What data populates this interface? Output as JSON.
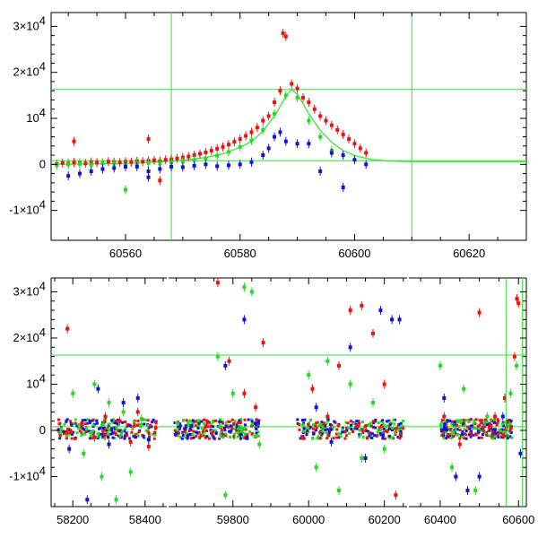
{
  "chart_data": [
    {
      "type": "scatter",
      "title": "",
      "xlabel": "",
      "ylabel": "",
      "xlim": [
        60547,
        60630
      ],
      "ylim": [
        -16500,
        33000
      ],
      "x_ticks": [
        60560,
        60580,
        60600,
        60620
      ],
      "x_tick_labels": [
        "60560",
        "60580",
        "60600",
        "60620"
      ],
      "y_ticks": [
        -10000,
        0,
        10000,
        20000,
        30000
      ],
      "y_tick_labels": [
        {
          "base": "-1×10",
          "exp": "4"
        },
        {
          "base": "0",
          "exp": ""
        },
        {
          "base": "10",
          "exp": "4"
        },
        {
          "base": "2×10",
          "exp": "4"
        },
        {
          "base": "3×10",
          "exp": "4"
        }
      ],
      "grid": false,
      "legend": "none",
      "reference_lines": {
        "horizontal": [
          16300,
          800
        ],
        "vertical": [
          60568,
          60610
        ],
        "color": "#2ee82e"
      },
      "model_curve": {
        "color": "#2ee82e",
        "x": [
          60547,
          60556,
          60562,
          60566,
          60570,
          60574,
          60577,
          60580,
          60582,
          60584,
          60586,
          60587,
          60588,
          60589,
          60590,
          60591,
          60592,
          60594,
          60596,
          60598,
          60600,
          60603,
          60606,
          60610,
          60630
        ],
        "y": [
          0,
          150,
          300,
          550,
          900,
          1500,
          2300,
          3700,
          5000,
          7200,
          10500,
          12600,
          14800,
          16300,
          15200,
          13200,
          11000,
          7400,
          4800,
          3000,
          1900,
          1050,
          700,
          600,
          600
        ]
      },
      "series": [
        {
          "color": "#ee1111",
          "x": [
            60548,
            60549,
            60550,
            60551,
            60552,
            60553,
            60554,
            60555,
            60556,
            60557,
            60558,
            60559,
            60560,
            60561,
            60562,
            60563,
            60564,
            60565,
            60566,
            60567,
            60568,
            60569,
            60570,
            60571,
            60572,
            60573,
            60574,
            60575,
            60576,
            60577,
            60578,
            60579,
            60580,
            60581,
            60582,
            60583,
            60584,
            60585,
            60586,
            60587,
            60587.5,
            60588,
            60589,
            60590,
            60591,
            60592,
            60593,
            60594,
            60595,
            60596,
            60597,
            60598,
            60599,
            60600,
            60601,
            60602,
            60564,
            60566,
            60551
          ],
          "y": [
            100,
            300,
            200,
            400,
            300,
            200,
            500,
            400,
            300,
            600,
            500,
            400,
            600,
            500,
            700,
            600,
            800,
            900,
            700,
            1000,
            1100,
            1300,
            1500,
            1700,
            2000,
            2300,
            2600,
            3000,
            3400,
            3800,
            4300,
            4900,
            5500,
            6200,
            7000,
            8000,
            9500,
            10500,
            13500,
            16000,
            28500,
            27800,
            17500,
            16500,
            14500,
            13500,
            12000,
            10500,
            9500,
            8500,
            7500,
            6500,
            5500,
            4500,
            3500,
            2500,
            5500,
            -3500,
            5000
          ]
        },
        {
          "color": "#22dd22",
          "x": [
            60548,
            60550,
            60552,
            60554,
            60556,
            60558,
            60560,
            60562,
            60564,
            60566,
            60568,
            60570,
            60572,
            60574,
            60576,
            60578,
            60580,
            60582,
            60584,
            60586,
            60588,
            60590,
            60592,
            60594,
            60596,
            60560
          ],
          "y": [
            -200,
            0,
            100,
            -100,
            200,
            100,
            0,
            200,
            300,
            200,
            400,
            600,
            900,
            1300,
            1900,
            2700,
            3800,
            5200,
            7500,
            11000,
            15000,
            14500,
            9500,
            6000,
            3000,
            -5500
          ]
        },
        {
          "color": "#1111dd",
          "x": [
            60550,
            60552,
            60554,
            60556,
            60558,
            60560,
            60562,
            60564,
            60566,
            60568,
            60570,
            60572,
            60574,
            60576,
            60578,
            60580,
            60582,
            60584,
            60585,
            60586,
            60587,
            60588,
            60590,
            60592,
            60594,
            60596,
            60598,
            60600,
            60602,
            60564,
            60598
          ],
          "y": [
            -2500,
            -2000,
            -1500,
            -1000,
            -800,
            -500,
            -500,
            -2800,
            -1000,
            -500,
            -600,
            -300,
            0,
            -400,
            -200,
            0,
            500,
            2000,
            3500,
            6000,
            7000,
            5000,
            4500,
            4500,
            -1500,
            2500,
            2000,
            1000,
            0,
            -1500,
            -5000
          ]
        }
      ]
    },
    {
      "type": "scatter",
      "title": "",
      "xlabel": "",
      "ylabel": "",
      "x_axis_segments": [
        {
          "xlim": [
            58140,
            58460
          ],
          "ticks": [
            58200,
            58400
          ],
          "tick_labels": [
            "58200",
            "58400"
          ]
        },
        {
          "xlim": [
            59630,
            60260
          ],
          "ticks": [
            59800,
            60000,
            60200
          ],
          "tick_labels": [
            "59800",
            "60000",
            "60200"
          ]
        },
        {
          "xlim": [
            60320,
            60620
          ],
          "ticks": [
            60400,
            60600
          ],
          "tick_labels": [
            "60400",
            "60600"
          ]
        }
      ],
      "ylim": [
        -16500,
        33000
      ],
      "y_ticks": [
        -10000,
        0,
        10000,
        20000,
        30000
      ],
      "y_tick_labels": [
        {
          "base": "-1×10",
          "exp": "4"
        },
        {
          "base": "0",
          "exp": ""
        },
        {
          "base": "10",
          "exp": "4"
        },
        {
          "base": "2×10",
          "exp": "4"
        },
        {
          "base": "3×10",
          "exp": "4"
        }
      ],
      "grid": false,
      "legend": "none",
      "reference_lines": {
        "horizontal": [
          16300,
          800
        ],
        "vertical": [
          60568,
          60610
        ],
        "color": "#2ee82e"
      },
      "series": [
        {
          "color": "#ee1111",
          "x": [
            58185,
            58225,
            58260,
            58290,
            58330,
            58360,
            58380,
            58410,
            59760,
            59790,
            59830,
            59860,
            59880,
            60010,
            60050,
            60080,
            60110,
            60140,
            60170,
            60200,
            60230,
            60410,
            60450,
            60500,
            60540,
            60565,
            60590,
            60596,
            60600
          ],
          "y": [
            22000,
            1500,
            -1500,
            3000,
            2000,
            -2500,
            4000,
            -3500,
            32000,
            15000,
            8000,
            5000,
            19000,
            9000,
            3000,
            14000,
            26000,
            27000,
            21000,
            10000,
            -14000,
            3000,
            -3000,
            25500,
            3000,
            7000,
            16000,
            28500,
            27500
          ]
        },
        {
          "color": "#22dd22",
          "x": [
            58200,
            58230,
            58260,
            58280,
            58300,
            58320,
            58340,
            58360,
            58390,
            59760,
            59780,
            59800,
            59830,
            59850,
            59870,
            60000,
            60020,
            60050,
            60080,
            60110,
            60140,
            60170,
            60200,
            60400,
            60430,
            60460,
            60490,
            60520,
            60580,
            60595
          ],
          "y": [
            8000,
            -5000,
            10000,
            -10000,
            6000,
            -15000,
            4000,
            -9000,
            2500,
            16000,
            -14000,
            8000,
            31000,
            30000,
            -3000,
            12000,
            -8000,
            15000,
            -13000,
            10000,
            -6000,
            6000,
            -4000,
            14000,
            -8000,
            9000,
            -13000,
            3000,
            8000,
            14000
          ]
        },
        {
          "color": "#1111dd",
          "x": [
            58190,
            58240,
            58270,
            58300,
            58340,
            58380,
            58410,
            59780,
            59830,
            59860,
            60020,
            60060,
            60110,
            60150,
            60190,
            60220,
            60240,
            60410,
            60440,
            60470,
            60500,
            60560,
            60605
          ],
          "y": [
            -4000,
            -15000,
            9000,
            -3000,
            6000,
            7000,
            -2000,
            14000,
            24000,
            1500,
            5000,
            -2500,
            18000,
            -6000,
            26000,
            24000,
            24000,
            7000,
            -10000,
            -13000,
            -10000,
            3000,
            -5000
          ]
        }
      ]
    }
  ]
}
